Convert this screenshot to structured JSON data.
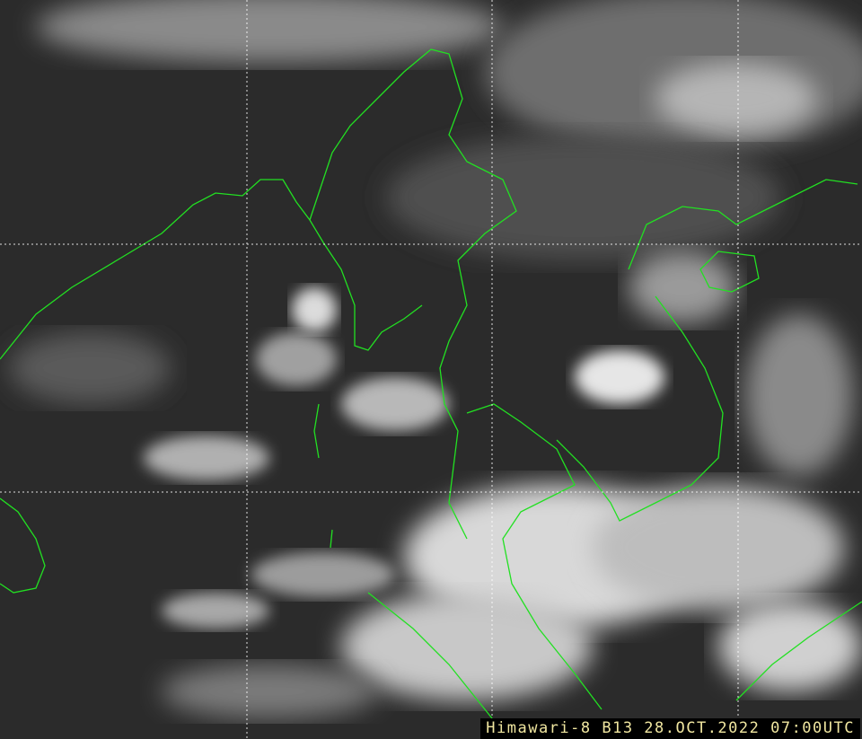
{
  "image": {
    "caption": "Himawari-8 B13 28.OCT.2022 07:00UTC",
    "colors": {
      "coastline": "#22e022",
      "grid": "#ffffff",
      "caption_text": "#f0e6a0",
      "caption_bg": "#000000"
    }
  }
}
